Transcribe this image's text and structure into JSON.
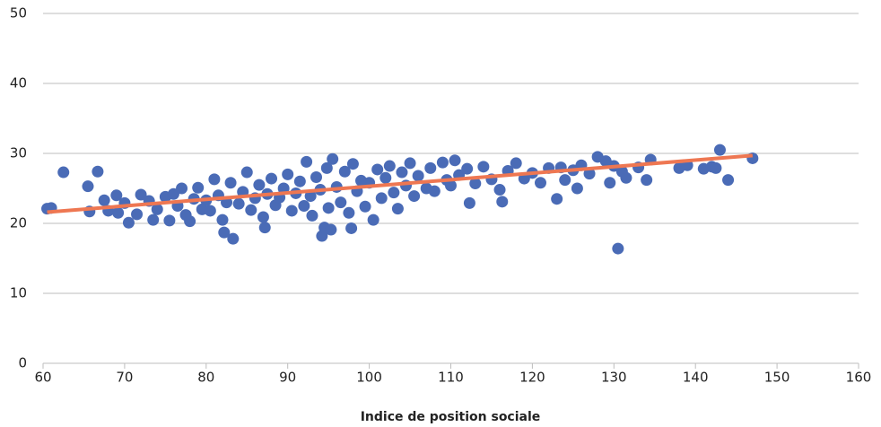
{
  "chart_data": {
    "type": "scatter",
    "xlabel": "Indice de position sociale",
    "x": [
      60.5,
      61,
      62.5,
      65.5,
      65.7,
      66.7,
      67.5,
      68,
      69,
      69.2,
      70,
      70.5,
      71.5,
      72,
      73,
      73.5,
      74,
      75,
      75.5,
      76,
      76.5,
      77,
      77.5,
      78,
      78.5,
      79,
      79.5,
      80,
      80.5,
      81,
      81.5,
      82,
      82.2,
      82.5,
      83,
      83.3,
      84,
      84.5,
      85,
      85.5,
      86,
      86.5,
      87,
      87.2,
      87.5,
      88,
      88.5,
      89,
      89.5,
      90,
      90.5,
      91,
      91.5,
      92,
      92.3,
      92.8,
      93,
      93.5,
      94,
      94.2,
      94.5,
      94.8,
      95,
      95.3,
      95.5,
      96,
      96.5,
      97,
      97.5,
      97.8,
      98,
      98.5,
      99,
      99.5,
      100,
      100.5,
      101,
      101.5,
      102,
      102.5,
      103,
      103.5,
      104,
      104.5,
      105,
      105.5,
      106,
      107,
      107.5,
      108,
      109,
      109.5,
      110,
      110.5,
      111,
      112,
      112.3,
      113,
      114,
      115,
      116,
      116.3,
      117,
      118,
      119,
      120,
      121,
      122,
      123,
      123.5,
      124,
      125,
      125.5,
      126,
      127,
      128,
      129,
      129.5,
      130,
      130.5,
      131,
      131.5,
      133,
      134,
      134.5,
      138,
      139,
      141,
      142,
      142.5,
      143,
      144,
      147
    ],
    "series": [
      {
        "color": "#4a6bb6",
        "values": [
          22.1,
          22.2,
          27.3,
          25.3,
          21.7,
          27.4,
          23.3,
          21.8,
          24,
          21.5,
          22.9,
          20.1,
          21.3,
          24.1,
          23.2,
          20.5,
          22,
          23.8,
          20.4,
          24.2,
          22.5,
          25,
          21.2,
          20.3,
          23.5,
          25.1,
          22,
          23.3,
          21.8,
          26.3,
          24,
          20.5,
          18.7,
          23,
          25.8,
          17.8,
          22.8,
          24.5,
          27.3,
          21.9,
          23.6,
          25.5,
          20.9,
          19.4,
          24.2,
          26.4,
          22.6,
          23.7,
          25,
          27,
          21.8,
          24.3,
          26,
          22.5,
          28.8,
          23.9,
          21.1,
          26.6,
          24.8,
          18.2,
          19.4,
          27.9,
          22.2,
          19.1,
          29.2,
          25.2,
          23,
          27.4,
          21.5,
          19.3,
          28.5,
          24.6,
          26.1,
          22.4,
          25.8,
          20.5,
          27.7,
          23.6,
          26.5,
          28.2,
          24.4,
          22.1,
          27.3,
          25.4,
          28.6,
          23.9,
          26.8,
          25,
          27.9,
          24.6,
          28.7,
          26.2,
          25.4,
          29,
          26.9,
          27.8,
          22.9,
          25.7,
          28.1,
          26.3,
          24.8,
          23.1,
          27.5,
          28.6,
          26.4,
          27.2,
          25.8,
          27.9,
          23.5,
          28,
          26.2,
          27.6,
          25,
          28.3,
          27.1,
          29.5,
          28.9,
          25.8,
          28.2,
          16.4,
          27.4,
          26.5,
          28,
          26.2,
          29.1,
          27.9,
          28.3,
          27.8,
          28.1,
          27.9,
          30.5,
          26.2,
          29.3
        ]
      }
    ],
    "trendline": {
      "color": "#ee7752",
      "x": [
        60.5,
        147
      ],
      "values": [
        21.6,
        29.7
      ]
    },
    "xlim": [
      60,
      160
    ],
    "xticks": [
      60,
      70,
      80,
      90,
      100,
      110,
      120,
      130,
      140,
      150,
      160
    ],
    "ylim": [
      0,
      50
    ],
    "yticks": [
      0,
      10,
      20,
      30,
      40,
      50
    ],
    "grid": true
  }
}
